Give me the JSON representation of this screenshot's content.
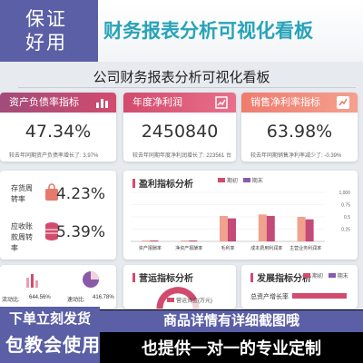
{
  "promo": {
    "badge_line1": "保证",
    "badge_line2": "好用",
    "headline": "财务报表分析可视化看板",
    "bottom_left_1": "下单立刻发货",
    "bottom_left_2": "包教会使用",
    "bottom_right_1": "商品详情有详细截图哦",
    "bottom_right_2": "也提供一对一的专业定制"
  },
  "dashboard": {
    "title": "公司财务报表分析可视化看板",
    "colors": {
      "accent": "#d24b6e",
      "purple": "#8a5aa8",
      "pink": "#e87a8c",
      "salmon": "#f08a7c",
      "orange": "#f5b07a"
    }
  },
  "kpis": [
    {
      "label": "资产负债率指标",
      "value": "47.34%",
      "note": "较去年同期资产负债率增长了: 3.97%",
      "icon": "bar-chart-icon"
    },
    {
      "label": "年度净利润",
      "value": "2450840",
      "note": "较去年同期年度净利润增长了: 223561 台",
      "icon": "growth-chart-icon"
    },
    {
      "label": "销售净利率指标",
      "value": "63.98%",
      "note": "较去年同期销售净利率减少了: -0.39%",
      "icon": "trend-up-icon"
    }
  ],
  "turnover": [
    {
      "label": "存货周转率",
      "value": "4.23%",
      "icon": "bag-icon"
    },
    {
      "label": "应收账款周转率",
      "value": "5.39%",
      "icon": "coins-icon"
    }
  ],
  "liquidity": {
    "current_label": "流动比:",
    "current_value": "644.56%",
    "quick_label": "速动比:",
    "quick_value": "416.78%"
  },
  "profit_panel": {
    "title": "盈利指标分析",
    "legend": [
      "期初",
      "期末"
    ],
    "y_ticks": [
      "1,000",
      "0.75",
      "0.5",
      "0.25"
    ]
  },
  "chart_data": {
    "type": "bar",
    "title": "盈利指标分析",
    "categories": [
      "资产报酬率",
      "净资产报酬率",
      "毛利率",
      "成本费用利润率",
      "主营业务利润率"
    ],
    "series": [
      {
        "name": "期初",
        "values": [
          0.01,
          0.01,
          0.52,
          0.55,
          0.5
        ]
      },
      {
        "name": "期末",
        "values": [
          0.01,
          0.01,
          0.47,
          0.52,
          0.45
        ]
      }
    ],
    "ylim": [
      0,
      1
    ]
  },
  "ops_panel": {
    "title": "营运指标分析",
    "legend": "营运资金(万元)"
  },
  "dev_panel": {
    "title": "发展指标分析",
    "legend": [
      "期初",
      "期末"
    ],
    "row_label": "总资产增长率"
  }
}
